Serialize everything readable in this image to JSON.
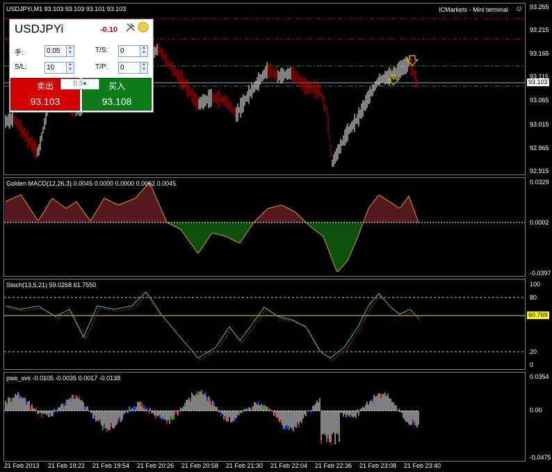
{
  "header": {
    "title": "USDJPYi,M1  93.103 93.103 93.101 93.103",
    "broker": "ICMarkets - Mini terminal",
    "smile_glyph": "☺"
  },
  "price_axis": [
    "93.265",
    "93.215",
    "93.165",
    "93.115",
    "93.065",
    "93.015",
    "92.965",
    "92.915"
  ],
  "price_tag": "93.103",
  "macd": {
    "label": "Golden MACD(12,26,3) 0.0045 0.0000 0.0000 0.0062 0.0045",
    "axis_top": "0.0329",
    "axis_zero": "0.0002",
    "axis_bottom": "-0.0397"
  },
  "stoch": {
    "label": "Stoch(13,5,21) 59.0268 61.7550",
    "levels": [
      "100",
      "80",
      "20",
      "0"
    ],
    "tag": "60.769"
  },
  "pwo": {
    "label": "pwo_svs -0.0105 -0.0035 0.0017 -0.0138",
    "axis_top": "0.0354",
    "axis_zero": "0.00",
    "axis_bottom": "-0.0475"
  },
  "time_axis": [
    "21 Feb 2013",
    "21 Feb 19:22",
    "21 Feb 19:54",
    "21 Feb 20:26",
    "21 Feb 20:58",
    "21 Feb 21:30",
    "21 Feb 22:04",
    "21 Feb 22:36",
    "21 Feb 23:08",
    "21 Feb 23:40"
  ],
  "trade_panel": {
    "symbol": "USDJPYi",
    "change": "-0.10",
    "lots_label": "手:",
    "lots_value": "0.05",
    "ts_label": "T/S:",
    "ts_value": "0",
    "sl_label": "S/L:",
    "sl_value": "10",
    "tp_label": "T/P:",
    "tp_value": "0",
    "sell_label": "卖出",
    "buy_label": "买入",
    "lot_step": "0.5",
    "sell_price": "93.103",
    "buy_price": "93.108"
  }
}
